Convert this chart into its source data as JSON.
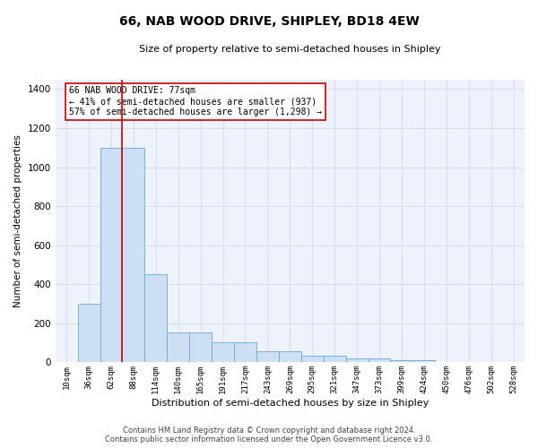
{
  "title": "66, NAB WOOD DRIVE, SHIPLEY, BD18 4EW",
  "subtitle": "Size of property relative to semi-detached houses in Shipley",
  "xlabel": "Distribution of semi-detached houses by size in Shipley",
  "ylabel": "Number of semi-detached properties",
  "bar_color": "#ccdff5",
  "bar_edge_color": "#6aaad4",
  "background_color": "#eef2fb",
  "grid_color": "#d8dff0",
  "annotation_line_color": "#cc0000",
  "annotation_box_color": "#ffffff",
  "annotation_box_edge": "#cc0000",
  "annotation_text": "66 NAB WOOD DRIVE: 77sqm\n← 41% of semi-detached houses are smaller (937)\n57% of semi-detached houses are larger (1,298) →",
  "property_size_sqm": 77,
  "categories": [
    "10sqm",
    "36sqm",
    "62sqm",
    "88sqm",
    "114sqm",
    "140sqm",
    "165sqm",
    "191sqm",
    "217sqm",
    "243sqm",
    "269sqm",
    "295sqm",
    "321sqm",
    "347sqm",
    "373sqm",
    "399sqm",
    "424sqm",
    "450sqm",
    "476sqm",
    "502sqm",
    "528sqm"
  ],
  "values": [
    0,
    300,
    1100,
    1100,
    450,
    155,
    155,
    105,
    105,
    55,
    55,
    35,
    35,
    20,
    20,
    10,
    10,
    0,
    0,
    0,
    0
  ],
  "ylim": [
    0,
    1450
  ],
  "yticks": [
    0,
    200,
    400,
    600,
    800,
    1000,
    1200,
    1400
  ],
  "footer": "Contains HM Land Registry data © Crown copyright and database right 2024.\nContains public sector information licensed under the Open Government Licence v3.0.",
  "property_bin_index": 2,
  "annotation_text_small": "66 NAB WOOD DRIVE: 77sqm",
  "annotation_text_line2": "← 41% of semi-detached houses are smaller (937)",
  "annotation_text_line3": "57% of semi-detached houses are larger (1,298) →"
}
